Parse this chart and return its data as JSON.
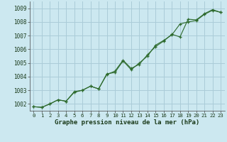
{
  "title": "Graphe pression niveau de la mer (hPa)",
  "bg_color": "#cce8f0",
  "grid_color": "#aaccd8",
  "line_color": "#2d6a2d",
  "marker_color": "#2d6a2d",
  "xlim": [
    -0.5,
    23.5
  ],
  "ylim": [
    1001.5,
    1009.5
  ],
  "yticks": [
    1002,
    1003,
    1004,
    1005,
    1006,
    1007,
    1008,
    1009
  ],
  "xticks": [
    0,
    1,
    2,
    3,
    4,
    5,
    6,
    7,
    8,
    9,
    10,
    11,
    12,
    13,
    14,
    15,
    16,
    17,
    18,
    19,
    20,
    21,
    22,
    23
  ],
  "series1_y": [
    1001.8,
    1001.75,
    1002.0,
    1002.3,
    1002.2,
    1002.9,
    1003.0,
    1003.3,
    1003.1,
    1004.15,
    1004.4,
    1005.2,
    1004.6,
    1004.9,
    1005.6,
    1006.2,
    1006.6,
    1007.1,
    1006.9,
    1008.2,
    1008.15,
    1008.6,
    1008.9,
    1008.7
  ],
  "series2_y": [
    1001.8,
    1001.75,
    1002.0,
    1002.3,
    1002.2,
    1002.85,
    1003.0,
    1003.3,
    1003.1,
    1004.2,
    1004.3,
    1005.15,
    1004.5,
    1005.0,
    1005.5,
    1006.3,
    1006.65,
    1007.05,
    1007.85,
    1008.0,
    1008.1,
    1008.55,
    1008.85,
    1008.7
  ],
  "ylabel_fontsize": 5.5,
  "xlabel_fontsize": 5.2,
  "title_fontsize": 6.5
}
